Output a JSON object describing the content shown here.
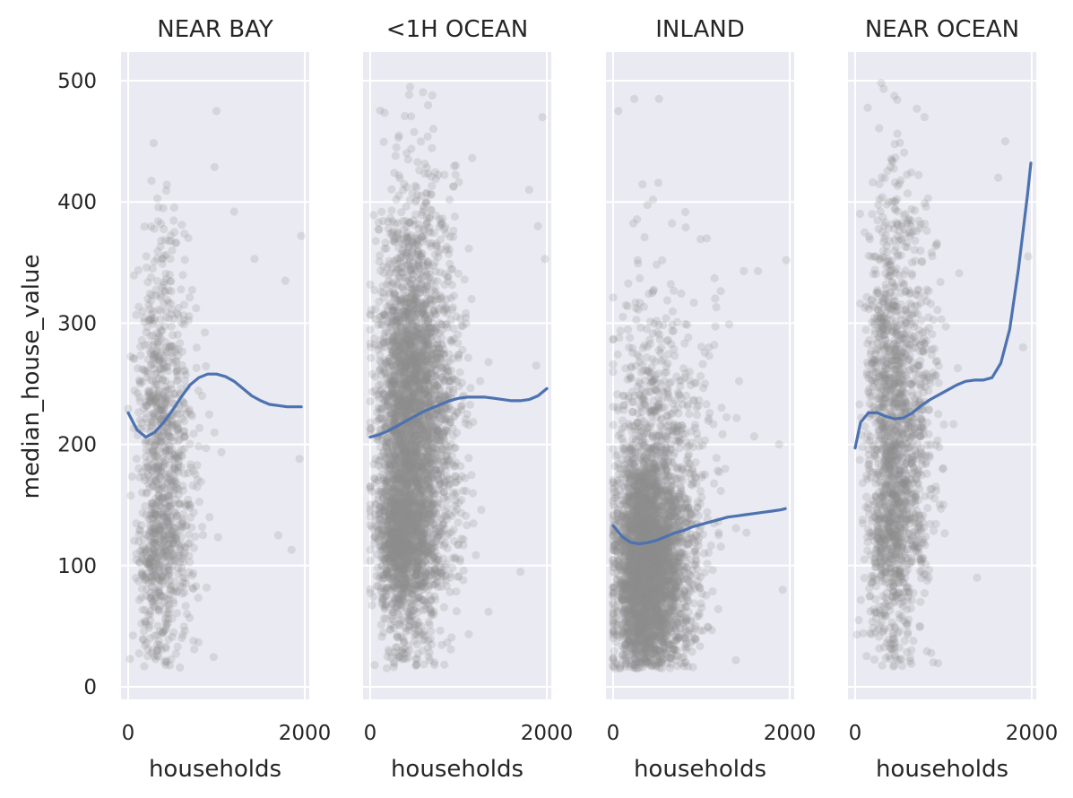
{
  "chart_data": {
    "type": "scatter",
    "layout": "facet-columns",
    "facet_by": "ocean_proximity",
    "xlabel": "households",
    "ylabel": "median_house_value",
    "xlim": [
      -40,
      2040
    ],
    "ylim": [
      -10,
      525
    ],
    "x_ticks": [
      0,
      2000
    ],
    "y_ticks": [
      0,
      100,
      200,
      300,
      400,
      500
    ],
    "grid": true,
    "marker_color": "#8f8f8f",
    "line_color": "#4c72b0",
    "background_color": "#eaeaf2",
    "panels": [
      {
        "title": "NEAR BAY",
        "smooth": {
          "x": [
            0,
            100,
            200,
            300,
            400,
            500,
            600,
            700,
            800,
            900,
            1000,
            1100,
            1200,
            1300,
            1400,
            1500,
            1600,
            1700,
            1800,
            1900,
            1960
          ],
          "y": [
            226,
            212,
            206,
            210,
            218,
            228,
            239,
            249,
            255,
            258,
            258,
            256,
            252,
            246,
            240,
            236,
            233,
            232,
            231,
            231,
            231
          ]
        },
        "points": {
          "n": 1100,
          "clusters": [
            {
              "x": 330,
              "y": 185,
              "sx": 180,
              "sy": 90,
              "w": 0.85
            },
            {
              "x": 300,
              "y": 110,
              "sx": 150,
              "sy": 25,
              "w": 0.15
            }
          ],
          "outliers": [
            [
              20,
              23
            ],
            [
              250,
              40
            ],
            [
              740,
              38
            ],
            [
              1960,
              372
            ],
            [
              1940,
              188
            ],
            [
              1700,
              125
            ],
            [
              1850,
              113
            ],
            [
              1780,
              335
            ],
            [
              1430,
              353
            ],
            [
              1000,
              475
            ],
            [
              1200,
              392
            ]
          ]
        }
      },
      {
        "title": "<1H OCEAN",
        "smooth": {
          "x": [
            0,
            100,
            200,
            300,
            400,
            500,
            600,
            700,
            800,
            900,
            1000,
            1100,
            1200,
            1300,
            1400,
            1500,
            1600,
            1700,
            1800,
            1900,
            2000
          ],
          "y": [
            206,
            208,
            211,
            215,
            219,
            223,
            227,
            230,
            233,
            236,
            238,
            239,
            239,
            239,
            238,
            237,
            236,
            236,
            237,
            240,
            246
          ]
        },
        "points": {
          "n": 4200,
          "clusters": [
            {
              "x": 400,
              "y": 220,
              "sx": 230,
              "sy": 85,
              "w": 0.8
            },
            {
              "x": 280,
              "y": 120,
              "sx": 170,
              "sy": 30,
              "w": 0.2
            }
          ],
          "outliers": [
            [
              50,
              18
            ],
            [
              1950,
              470
            ],
            [
              1900,
              380
            ],
            [
              1340,
              62
            ],
            [
              1800,
              410
            ],
            [
              1980,
              353
            ],
            [
              1880,
              265
            ],
            [
              1700,
              95
            ]
          ]
        }
      },
      {
        "title": "INLAND",
        "smooth": {
          "x": [
            0,
            100,
            200,
            300,
            400,
            500,
            600,
            700,
            800,
            900,
            1000,
            1100,
            1200,
            1300,
            1400,
            1500,
            1600,
            1700,
            1800,
            1900,
            1950
          ],
          "y": [
            133,
            124,
            119,
            118,
            119,
            121,
            124,
            127,
            129,
            132,
            134,
            136,
            138,
            140,
            141,
            142,
            143,
            144,
            145,
            146,
            147
          ]
        },
        "points": {
          "n": 4000,
          "clusters": [
            {
              "x": 320,
              "y": 100,
              "sx": 210,
              "sy": 45,
              "w": 0.8
            },
            {
              "x": 400,
              "y": 170,
              "sx": 300,
              "sy": 80,
              "w": 0.2
            }
          ],
          "outliers": [
            [
              20,
              15
            ],
            [
              60,
              475
            ],
            [
              240,
              485
            ],
            [
              520,
              485
            ],
            [
              1960,
              352
            ],
            [
              1920,
              80
            ],
            [
              1640,
              343
            ],
            [
              1480,
              343
            ],
            [
              1390,
              22
            ],
            [
              1880,
              200
            ]
          ]
        }
      },
      {
        "title": "NEAR OCEAN",
        "smooth": {
          "x": [
            0,
            60,
            150,
            250,
            350,
            450,
            550,
            650,
            750,
            850,
            950,
            1050,
            1150,
            1250,
            1350,
            1450,
            1550,
            1650,
            1750,
            1850,
            1950,
            1990
          ],
          "y": [
            197,
            218,
            226,
            226,
            223,
            221,
            222,
            226,
            232,
            237,
            241,
            245,
            249,
            252,
            253,
            253,
            255,
            267,
            295,
            345,
            405,
            432
          ]
        },
        "points": {
          "n": 1800,
          "clusters": [
            {
              "x": 380,
              "y": 220,
              "sx": 200,
              "sy": 95,
              "w": 0.85
            },
            {
              "x": 360,
              "y": 120,
              "sx": 160,
              "sy": 30,
              "w": 0.15
            }
          ],
          "outliers": [
            [
              20,
              43
            ],
            [
              40,
              55
            ],
            [
              560,
              38
            ],
            [
              1960,
              355
            ],
            [
              1900,
              280
            ],
            [
              1700,
              450
            ],
            [
              1380,
              90
            ],
            [
              1620,
              420
            ]
          ]
        }
      }
    ]
  }
}
